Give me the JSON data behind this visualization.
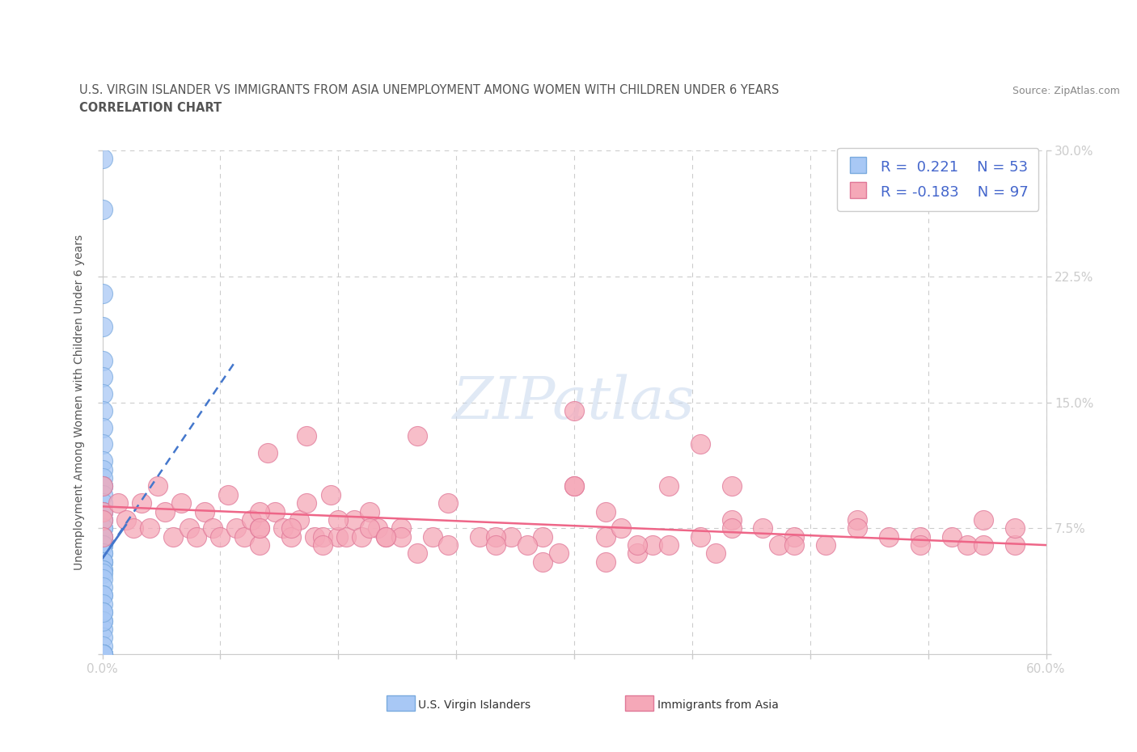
{
  "title_line1": "U.S. VIRGIN ISLANDER VS IMMIGRANTS FROM ASIA UNEMPLOYMENT AMONG WOMEN WITH CHILDREN UNDER 6 YEARS",
  "title_line2": "CORRELATION CHART",
  "source_text": "Source: ZipAtlas.com",
  "ylabel": "Unemployment Among Women with Children Under 6 years",
  "xlim": [
    0.0,
    0.6
  ],
  "ylim": [
    0.0,
    0.3
  ],
  "xticks": [
    0.0,
    0.075,
    0.15,
    0.225,
    0.3,
    0.375,
    0.45,
    0.525,
    0.6
  ],
  "xticklabels": [
    "0.0%",
    "",
    "",
    "",
    "",
    "",
    "",
    "",
    "60.0%"
  ],
  "yticks": [
    0.0,
    0.075,
    0.15,
    0.225,
    0.3
  ],
  "yticklabels_right": [
    "",
    "7.5%",
    "15.0%",
    "22.5%",
    "30.0%"
  ],
  "blue_R": 0.221,
  "blue_N": 53,
  "pink_R": -0.183,
  "pink_N": 97,
  "blue_color": "#a8c8f5",
  "pink_color": "#f5a8b8",
  "blue_edge_color": "#7aaade",
  "pink_edge_color": "#e07898",
  "blue_line_color": "#4477cc",
  "pink_line_color": "#ee6688",
  "watermark_text": "ZIPatlas",
  "legend_label_blue": "U.S. Virgin Islanders",
  "legend_label_pink": "Immigrants from Asia",
  "blue_scatter_x": [
    0.0,
    0.0,
    0.0,
    0.0,
    0.0,
    0.0,
    0.0,
    0.0,
    0.0,
    0.0,
    0.0,
    0.0,
    0.0,
    0.0,
    0.0,
    0.0,
    0.0,
    0.0,
    0.0,
    0.0,
    0.0,
    0.0,
    0.0,
    0.0,
    0.0,
    0.0,
    0.0,
    0.0,
    0.0,
    0.0,
    0.0,
    0.0,
    0.0,
    0.0,
    0.0,
    0.0,
    0.0,
    0.0,
    0.0,
    0.0,
    0.0,
    0.0,
    0.0,
    0.0,
    0.0,
    0.0,
    0.0,
    0.0,
    0.0,
    0.0,
    0.0,
    0.0,
    0.0
  ],
  "blue_scatter_y": [
    0.295,
    0.265,
    0.215,
    0.195,
    0.175,
    0.165,
    0.155,
    0.145,
    0.135,
    0.125,
    0.115,
    0.11,
    0.105,
    0.1,
    0.1,
    0.095,
    0.09,
    0.085,
    0.085,
    0.08,
    0.08,
    0.075,
    0.075,
    0.07,
    0.07,
    0.065,
    0.065,
    0.065,
    0.06,
    0.06,
    0.055,
    0.055,
    0.055,
    0.05,
    0.05,
    0.048,
    0.045,
    0.04,
    0.035,
    0.035,
    0.03,
    0.025,
    0.02,
    0.015,
    0.01,
    0.005,
    0.0,
    0.0,
    0.0,
    0.0,
    0.0,
    0.02,
    0.025
  ],
  "pink_scatter_x": [
    0.0,
    0.0,
    0.0,
    0.0,
    0.01,
    0.015,
    0.02,
    0.025,
    0.03,
    0.035,
    0.04,
    0.045,
    0.05,
    0.055,
    0.06,
    0.065,
    0.07,
    0.075,
    0.08,
    0.085,
    0.09,
    0.095,
    0.1,
    0.1,
    0.105,
    0.11,
    0.115,
    0.12,
    0.125,
    0.13,
    0.135,
    0.14,
    0.145,
    0.15,
    0.155,
    0.16,
    0.165,
    0.17,
    0.175,
    0.18,
    0.19,
    0.2,
    0.21,
    0.22,
    0.24,
    0.26,
    0.28,
    0.3,
    0.32,
    0.34,
    0.36,
    0.38,
    0.4,
    0.42,
    0.44,
    0.46,
    0.48,
    0.5,
    0.52,
    0.54,
    0.56,
    0.58,
    0.58,
    0.3,
    0.32,
    0.35,
    0.38,
    0.4,
    0.43,
    0.1,
    0.12,
    0.13,
    0.15,
    0.17,
    0.19,
    0.22,
    0.25,
    0.27,
    0.3,
    0.33,
    0.36,
    0.4,
    0.44,
    0.48,
    0.52,
    0.55,
    0.56,
    0.28,
    0.32,
    0.1,
    0.14,
    0.18,
    0.2,
    0.25,
    0.29,
    0.34,
    0.39
  ],
  "pink_scatter_y": [
    0.1,
    0.085,
    0.08,
    0.07,
    0.09,
    0.08,
    0.075,
    0.09,
    0.075,
    0.1,
    0.085,
    0.07,
    0.09,
    0.075,
    0.07,
    0.085,
    0.075,
    0.07,
    0.095,
    0.075,
    0.07,
    0.08,
    0.075,
    0.065,
    0.12,
    0.085,
    0.075,
    0.07,
    0.08,
    0.13,
    0.07,
    0.07,
    0.095,
    0.07,
    0.07,
    0.08,
    0.07,
    0.085,
    0.075,
    0.07,
    0.075,
    0.13,
    0.07,
    0.09,
    0.07,
    0.07,
    0.07,
    0.145,
    0.07,
    0.06,
    0.1,
    0.125,
    0.08,
    0.075,
    0.07,
    0.065,
    0.08,
    0.07,
    0.07,
    0.07,
    0.08,
    0.065,
    0.075,
    0.1,
    0.085,
    0.065,
    0.07,
    0.075,
    0.065,
    0.085,
    0.075,
    0.09,
    0.08,
    0.075,
    0.07,
    0.065,
    0.07,
    0.065,
    0.1,
    0.075,
    0.065,
    0.1,
    0.065,
    0.075,
    0.065,
    0.065,
    0.065,
    0.055,
    0.055,
    0.075,
    0.065,
    0.07,
    0.06,
    0.065,
    0.06,
    0.065,
    0.06
  ],
  "blue_trend_x": [
    0.0,
    0.085
  ],
  "blue_trend_y": [
    0.057,
    0.175
  ],
  "pink_trend_x": [
    0.0,
    0.6
  ],
  "pink_trend_y": [
    0.088,
    0.065
  ],
  "title_color": "#555555",
  "background_color": "#ffffff",
  "grid_color": "#cccccc"
}
